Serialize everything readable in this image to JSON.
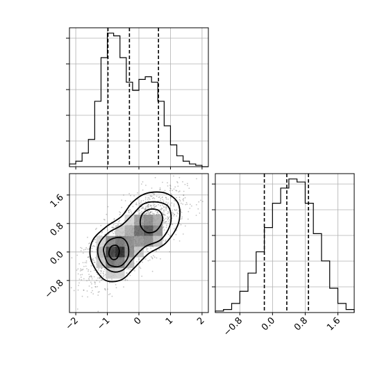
{
  "chart_data": [
    {
      "panel": "marginal-x",
      "type": "bar",
      "x_bin_edges": [
        -2.2,
        -2.0,
        -1.8,
        -1.6,
        -1.4,
        -1.2,
        -1.0,
        -0.8,
        -0.6,
        -0.4,
        -0.2,
        0.0,
        0.2,
        0.4,
        0.6,
        0.8,
        1.0,
        1.2,
        1.4,
        1.6,
        1.8,
        2.0,
        2.2
      ],
      "values": [
        1,
        2,
        5,
        10,
        24,
        40,
        49,
        48,
        40,
        31,
        28,
        32,
        33,
        31,
        24,
        15,
        8,
        4,
        2,
        1,
        0.5,
        0
      ],
      "quantiles": [
        -0.98,
        -0.3,
        0.62
      ],
      "xlim": [
        -2.2,
        2.2
      ],
      "grid": true
    },
    {
      "panel": "joint",
      "type": "heatmap",
      "x_centers": [
        -1.2,
        -0.9,
        -0.6,
        -0.3,
        0.0,
        0.3,
        0.6,
        0.9
      ],
      "y_centers": [
        -0.6,
        -0.3,
        0.0,
        0.3,
        0.6,
        0.9,
        1.2
      ],
      "density": [
        [
          0.1,
          0.25,
          0.22,
          0.1,
          0.04,
          0.01,
          0.0,
          0.0
        ],
        [
          0.25,
          0.65,
          0.6,
          0.32,
          0.12,
          0.04,
          0.01,
          0.0
        ],
        [
          0.35,
          0.9,
          1.0,
          0.55,
          0.28,
          0.18,
          0.08,
          0.01
        ],
        [
          0.2,
          0.55,
          0.65,
          0.55,
          0.5,
          0.55,
          0.3,
          0.08
        ],
        [
          0.05,
          0.15,
          0.25,
          0.4,
          0.7,
          0.8,
          0.55,
          0.15
        ],
        [
          0.01,
          0.04,
          0.08,
          0.2,
          0.45,
          0.55,
          0.4,
          0.1
        ],
        [
          0.0,
          0.01,
          0.02,
          0.05,
          0.12,
          0.18,
          0.12,
          0.03
        ]
      ],
      "contours": [
        {
          "level": 1,
          "points": [
            [
              -1.55,
              -0.05
            ],
            [
              -1.4,
              -0.45
            ],
            [
              -1.05,
              -0.8
            ],
            [
              -0.55,
              -0.78
            ],
            [
              -0.15,
              -0.45
            ],
            [
              0.3,
              -0.05
            ],
            [
              0.85,
              0.25
            ],
            [
              1.25,
              0.8
            ],
            [
              1.25,
              1.35
            ],
            [
              0.85,
              1.65
            ],
            [
              0.25,
              1.65
            ],
            [
              -0.2,
              1.4
            ],
            [
              -0.55,
              1.0
            ],
            [
              -1.05,
              0.7
            ],
            [
              -1.45,
              0.35
            ]
          ]
        },
        {
          "level": 2,
          "points": [
            [
              -1.3,
              -0.05
            ],
            [
              -1.15,
              -0.35
            ],
            [
              -0.85,
              -0.55
            ],
            [
              -0.5,
              -0.5
            ],
            [
              -0.2,
              -0.2
            ],
            [
              0.2,
              0.15
            ],
            [
              0.7,
              0.35
            ],
            [
              1.0,
              0.8
            ],
            [
              0.95,
              1.25
            ],
            [
              0.6,
              1.4
            ],
            [
              0.15,
              1.35
            ],
            [
              -0.2,
              1.05
            ],
            [
              -0.55,
              0.75
            ],
            [
              -0.95,
              0.55
            ],
            [
              -1.25,
              0.25
            ]
          ]
        },
        {
          "level": 3,
          "points": [
            [
              -1.1,
              -0.05
            ],
            [
              -0.95,
              -0.35
            ],
            [
              -0.6,
              -0.4
            ],
            [
              -0.35,
              -0.15
            ],
            [
              -0.35,
              0.2
            ],
            [
              -0.55,
              0.4
            ],
            [
              -0.9,
              0.35
            ],
            [
              -1.1,
              0.15
            ]
          ]
        },
        {
          "level": 3,
          "points": [
            [
              0.05,
              0.75
            ],
            [
              0.25,
              0.55
            ],
            [
              0.55,
              0.6
            ],
            [
              0.75,
              0.9
            ],
            [
              0.65,
              1.15
            ],
            [
              0.35,
              1.2
            ],
            [
              0.1,
              1.05
            ]
          ]
        },
        {
          "level": 4,
          "points": [
            [
              -0.95,
              -0.05
            ],
            [
              -0.85,
              -0.2
            ],
            [
              -0.7,
              -0.18
            ],
            [
              -0.62,
              0.02
            ],
            [
              -0.7,
              0.18
            ],
            [
              -0.88,
              0.15
            ]
          ]
        }
      ],
      "xlim": [
        -2.2,
        2.2
      ],
      "ylim": [
        -1.7,
        2.2
      ],
      "xticks": [
        "−2",
        "−1",
        "0",
        "1",
        "2"
      ],
      "yticks": [
        "−0.8",
        "0.0",
        "0.8",
        "1.6"
      ],
      "grid": true
    },
    {
      "panel": "marginal-y",
      "type": "bar",
      "x_bin_edges": [
        -1.4,
        -1.2,
        -1.0,
        -0.8,
        -0.6,
        -0.4,
        -0.2,
        0.0,
        0.2,
        0.4,
        0.6,
        0.8,
        1.0,
        1.2,
        1.4,
        1.6,
        1.8,
        2.0
      ],
      "values": [
        0.5,
        1,
        3,
        7,
        13,
        20,
        28,
        36,
        41,
        44,
        43,
        36,
        26,
        17,
        8,
        3,
        1
      ],
      "quantiles": [
        -0.2,
        0.35,
        0.88
      ],
      "xlim": [
        -1.4,
        2.0
      ],
      "xticks": [
        "−0.8",
        "0.0",
        "0.8",
        "1.6"
      ],
      "grid": true
    }
  ]
}
